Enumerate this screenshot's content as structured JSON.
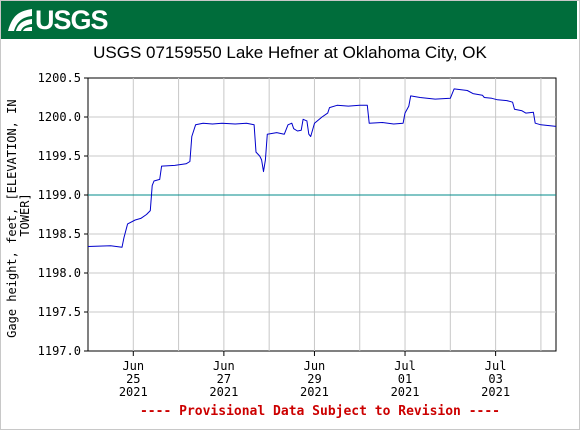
{
  "header": {
    "logo_text": "USGS",
    "logo_icon": "usgs-wave-icon",
    "banner_color": "#006d3b"
  },
  "chart_data": {
    "type": "line",
    "title": "USGS 07159550 Lake Hefner at Oklahoma City, OK",
    "ylabel": "Gage height, feet, [ELEVATION, IN TOWER]",
    "ylabel_lines": [
      "Gage height, feet, [ELEVATION, IN",
      "TOWER]"
    ],
    "xlabel": "",
    "ylim": [
      1197.0,
      1200.5
    ],
    "yticks": [
      "1197.0",
      "1197.5",
      "1198.0",
      "1198.5",
      "1199.0",
      "1199.5",
      "1200.0",
      "1200.5"
    ],
    "xlim": [
      "2021-06-24T00:00",
      "2021-07-04T08:00"
    ],
    "xticks": [
      {
        "date": "2021-06-25",
        "month": "Jun",
        "day": "25",
        "year": "2021"
      },
      {
        "date": "2021-06-27",
        "month": "Jun",
        "day": "27",
        "year": "2021"
      },
      {
        "date": "2021-06-29",
        "month": "Jun",
        "day": "29",
        "year": "2021"
      },
      {
        "date": "2021-07-01",
        "month": "Jul",
        "day": "01",
        "year": "2021"
      },
      {
        "date": "2021-07-03",
        "month": "Jul",
        "day": "03",
        "year": "2021"
      }
    ],
    "grid": true,
    "reference_line": {
      "value": 1199.0,
      "color": "#008b8b"
    },
    "series_color": "#0000cc",
    "series": [
      {
        "values": [
          [
            "2021-06-24T00:00",
            1198.34
          ],
          [
            "2021-06-24T12:00",
            1198.35
          ],
          [
            "2021-06-24T18:00",
            1198.33
          ],
          [
            "2021-06-24T19:00",
            1198.45
          ],
          [
            "2021-06-24T21:00",
            1198.63
          ],
          [
            "2021-06-25T01:00",
            1198.68
          ],
          [
            "2021-06-25T04:00",
            1198.7
          ],
          [
            "2021-06-25T07:00",
            1198.75
          ],
          [
            "2021-06-25T09:00",
            1198.8
          ],
          [
            "2021-06-25T10:00",
            1199.12
          ],
          [
            "2021-06-25T11:00",
            1199.18
          ],
          [
            "2021-06-25T14:00",
            1199.2
          ],
          [
            "2021-06-25T15:00",
            1199.37
          ],
          [
            "2021-06-25T22:00",
            1199.38
          ],
          [
            "2021-06-26T04:00",
            1199.4
          ],
          [
            "2021-06-26T06:00",
            1199.43
          ],
          [
            "2021-06-26T07:00",
            1199.75
          ],
          [
            "2021-06-26T09:00",
            1199.9
          ],
          [
            "2021-06-26T13:00",
            1199.92
          ],
          [
            "2021-06-26T18:00",
            1199.91
          ],
          [
            "2021-06-26T23:00",
            1199.92
          ],
          [
            "2021-06-27T06:00",
            1199.91
          ],
          [
            "2021-06-27T12:00",
            1199.92
          ],
          [
            "2021-06-27T16:00",
            1199.9
          ],
          [
            "2021-06-27T17:00",
            1199.55
          ],
          [
            "2021-06-27T19:00",
            1199.5
          ],
          [
            "2021-06-27T20:00",
            1199.45
          ],
          [
            "2021-06-27T21:00",
            1199.3
          ],
          [
            "2021-06-27T22:00",
            1199.45
          ],
          [
            "2021-06-27T23:00",
            1199.78
          ],
          [
            "2021-06-28T04:00",
            1199.8
          ],
          [
            "2021-06-28T08:00",
            1199.78
          ],
          [
            "2021-06-28T10:00",
            1199.9
          ],
          [
            "2021-06-28T12:00",
            1199.92
          ],
          [
            "2021-06-28T13:00",
            1199.85
          ],
          [
            "2021-06-28T15:00",
            1199.82
          ],
          [
            "2021-06-28T17:00",
            1199.83
          ],
          [
            "2021-06-28T18:00",
            1199.97
          ],
          [
            "2021-06-28T20:00",
            1199.95
          ],
          [
            "2021-06-28T21:00",
            1199.78
          ],
          [
            "2021-06-28T22:00",
            1199.75
          ],
          [
            "2021-06-29T00:00",
            1199.92
          ],
          [
            "2021-06-29T04:00",
            1200.0
          ],
          [
            "2021-06-29T07:00",
            1200.05
          ],
          [
            "2021-06-29T08:00",
            1200.12
          ],
          [
            "2021-06-29T12:00",
            1200.15
          ],
          [
            "2021-06-29T18:00",
            1200.14
          ],
          [
            "2021-06-30T00:00",
            1200.15
          ],
          [
            "2021-06-30T04:00",
            1200.15
          ],
          [
            "2021-06-30T05:00",
            1199.92
          ],
          [
            "2021-06-30T12:00",
            1199.93
          ],
          [
            "2021-06-30T18:00",
            1199.91
          ],
          [
            "2021-06-30T23:00",
            1199.92
          ],
          [
            "2021-07-01T00:00",
            1200.05
          ],
          [
            "2021-07-01T02:00",
            1200.14
          ],
          [
            "2021-07-01T03:00",
            1200.27
          ],
          [
            "2021-07-01T08:00",
            1200.25
          ],
          [
            "2021-07-01T16:00",
            1200.23
          ],
          [
            "2021-07-02T00:00",
            1200.24
          ],
          [
            "2021-07-02T02:00",
            1200.36
          ],
          [
            "2021-07-02T09:00",
            1200.34
          ],
          [
            "2021-07-02T12:00",
            1200.3
          ],
          [
            "2021-07-02T17:00",
            1200.28
          ],
          [
            "2021-07-02T18:00",
            1200.25
          ],
          [
            "2021-07-02T22:00",
            1200.24
          ],
          [
            "2021-07-03T01:00",
            1200.22
          ],
          [
            "2021-07-03T06:00",
            1200.21
          ],
          [
            "2021-07-03T09:00",
            1200.19
          ],
          [
            "2021-07-03T10:00",
            1200.1
          ],
          [
            "2021-07-03T14:00",
            1200.08
          ],
          [
            "2021-07-03T16:00",
            1200.05
          ],
          [
            "2021-07-03T20:00",
            1200.06
          ],
          [
            "2021-07-03T21:00",
            1199.92
          ],
          [
            "2021-07-04T00:00",
            1199.9
          ],
          [
            "2021-07-04T08:00",
            1199.88
          ]
        ]
      }
    ],
    "annotation": "---- Provisional Data Subject to Revision ----",
    "annotation_color": "#cc0000"
  }
}
